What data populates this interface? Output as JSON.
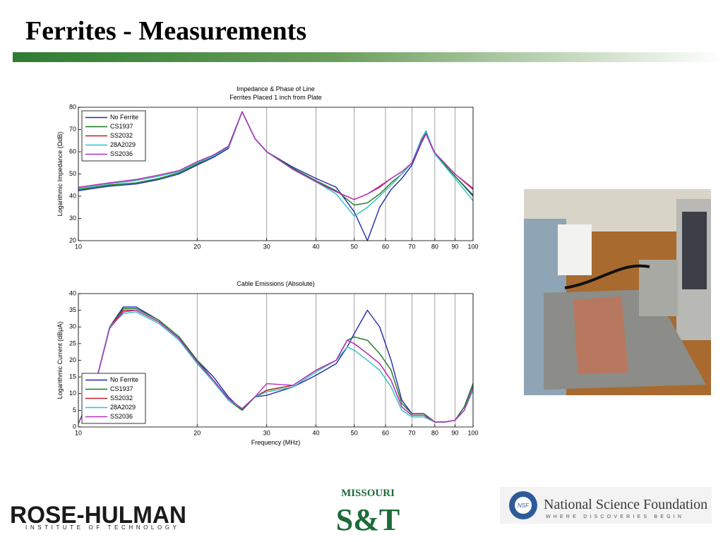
{
  "slide": {
    "title": "Ferrites - Measurements",
    "logos": {
      "rose_hulman": "ROSE-HULMAN",
      "rose_hulman_sub": "INSTITUTE OF TECHNOLOGY",
      "missouri": "MISSOURI",
      "st": "S&T",
      "nsf_badge": "NSF",
      "nsf": "National Science Foundation",
      "nsf_sub": "WHERE DISCOVERIES BEGIN"
    }
  },
  "chart_data": [
    {
      "type": "line",
      "title": "Impedance & Phase of Line",
      "subtitle": "Ferrites Placed 1 inch from Plate",
      "y_label": "Logarithmic Impedance (ΩdB)",
      "xscale": "log",
      "grid": "x",
      "legend": "upper left",
      "x": [
        10,
        12,
        14,
        16,
        18,
        20,
        22,
        24,
        26,
        28,
        30,
        35,
        40,
        45,
        50,
        54,
        58,
        62,
        66,
        70,
        74,
        76,
        80,
        90,
        100
      ],
      "xlim": [
        10,
        100
      ],
      "xticks": [
        10,
        20,
        30,
        40,
        50,
        60,
        70,
        80,
        90,
        100
      ],
      "ylim": [
        20,
        80
      ],
      "yticks": [
        20,
        30,
        40,
        50,
        60,
        70,
        80
      ],
      "series": [
        {
          "name": "No Ferrite",
          "color": "#1f2aa8",
          "values": [
            42.5,
            44.5,
            45.5,
            47.5,
            50,
            54,
            57.5,
            61.5,
            78,
            66,
            60,
            53,
            48,
            44,
            33,
            20,
            35,
            43,
            48,
            54,
            64,
            68,
            59,
            49,
            40.5
          ]
        },
        {
          "name": "CS1937",
          "color": "#1a7a1a",
          "values": [
            43,
            45,
            46,
            48,
            50.5,
            54.5,
            58,
            62,
            78,
            66,
            60,
            52.5,
            47,
            42.5,
            36,
            37,
            41,
            46,
            50,
            55,
            65,
            68.5,
            59,
            49,
            40
          ]
        },
        {
          "name": "SS2032",
          "color": "#c0202a",
          "values": [
            44,
            46,
            47.5,
            49.5,
            51.5,
            55.5,
            58.5,
            62.5,
            78,
            66,
            60,
            52,
            46.5,
            42,
            38.5,
            41,
            44.5,
            48,
            51,
            55,
            65,
            68,
            59.5,
            50,
            43.5
          ]
        },
        {
          "name": "28A2029",
          "color": "#30c0c0",
          "values": [
            43.5,
            45.5,
            47,
            49,
            51,
            55,
            58,
            62,
            78,
            66,
            60,
            52,
            46.5,
            41,
            31,
            35,
            40,
            45,
            50,
            55,
            66,
            69.5,
            59,
            48,
            38
          ]
        },
        {
          "name": "SS2036",
          "color": "#b030c0",
          "values": [
            44,
            46,
            47.5,
            49.5,
            51.5,
            55.5,
            58.5,
            62.5,
            78,
            66,
            60,
            52,
            46.5,
            42,
            38.5,
            41,
            44,
            48,
            51,
            55,
            64.5,
            68,
            59.5,
            50,
            43
          ]
        }
      ]
    },
    {
      "type": "line",
      "title": "Cable Emissions (Absolute)",
      "x_label": "Frequency (MHz)",
      "y_label": "Logarithmic Current (dBμA)",
      "xscale": "log",
      "grid": "x",
      "legend": "lower left",
      "x": [
        10,
        11,
        12,
        13,
        14,
        16,
        18,
        20,
        22,
        24,
        26,
        28,
        30,
        35,
        40,
        45,
        48,
        50,
        54,
        58,
        62,
        66,
        70,
        75,
        80,
        85,
        90,
        95,
        100
      ],
      "xlim": [
        10,
        100
      ],
      "xticks": [
        10,
        20,
        30,
        40,
        50,
        60,
        70,
        80,
        90,
        100
      ],
      "ylim": [
        0,
        40
      ],
      "yticks": [
        0,
        5,
        10,
        15,
        20,
        25,
        30,
        35,
        40
      ],
      "series": [
        {
          "name": "No Ferrite",
          "color": "#1f2aa8",
          "values": [
            1,
            12,
            30,
            36,
            36,
            32,
            27,
            20,
            15,
            9,
            5,
            9,
            9.5,
            12,
            15.5,
            19,
            24,
            28,
            35,
            30,
            20,
            8,
            4,
            4,
            1.5,
            1.5,
            2,
            6,
            13
          ]
        },
        {
          "name": "CS1937",
          "color": "#1a7a1a",
          "values": [
            1,
            12,
            30,
            35.5,
            35.5,
            32,
            27,
            20,
            14,
            8,
            5,
            9,
            11,
            12.5,
            17,
            20,
            26,
            27,
            26,
            22,
            17,
            7,
            4,
            4,
            1.5,
            1.5,
            2,
            6,
            13
          ]
        },
        {
          "name": "SS2032",
          "color": "#c0202a",
          "values": [
            1,
            12,
            30,
            35,
            35,
            31.5,
            26.5,
            19.5,
            14,
            8.5,
            5.5,
            9,
            11,
            12.5,
            17,
            20,
            26,
            25,
            22,
            19,
            14,
            6,
            3.5,
            3.5,
            1.5,
            1.5,
            2,
            5,
            12
          ]
        },
        {
          "name": "28A2029",
          "color": "#30c0c0",
          "values": [
            1,
            12,
            30,
            34,
            34.5,
            31,
            26,
            19,
            13.5,
            8,
            5.5,
            9,
            10.5,
            12,
            16.5,
            20,
            24,
            23,
            20,
            17,
            12,
            5,
            3,
            3,
            1.5,
            1.5,
            2,
            5,
            11
          ]
        },
        {
          "name": "SS2036",
          "color": "#b030c0",
          "values": [
            1,
            12,
            29.5,
            34.5,
            35,
            31.5,
            26.5,
            19.5,
            14,
            8.5,
            5.5,
            9,
            13,
            12.5,
            17,
            20,
            26,
            25,
            22,
            19,
            14,
            6,
            3.5,
            3.5,
            1.5,
            1.5,
            2,
            5,
            12
          ]
        }
      ]
    }
  ]
}
